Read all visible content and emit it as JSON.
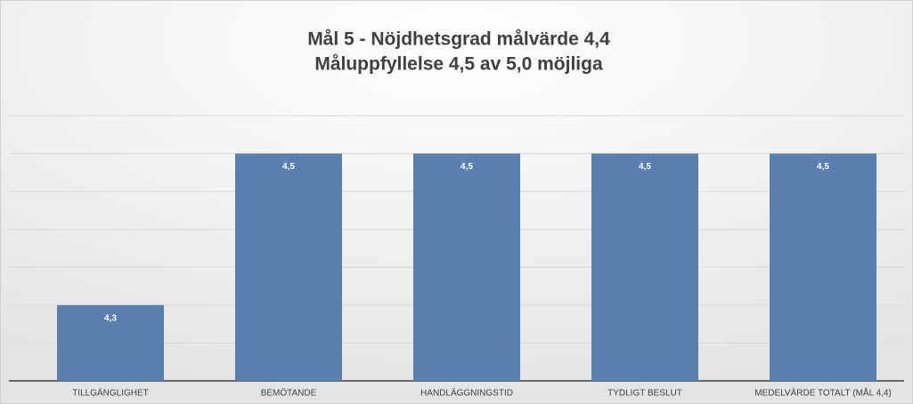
{
  "chart_data": {
    "type": "bar",
    "title": "Mål 5 - Nöjdhetsgrad målvärde 4,4",
    "subtitle": "Måluppfyllelse 4,5 av 5,0 möjliga",
    "categories": [
      "TILLGÄNGLIGHET",
      "BEMÖTANDE",
      "HANDLÄGGNINGSTID",
      "TYDLIGT BESLUT",
      "MEDELVÄRDE TOTALT (MÅL 4,4)"
    ],
    "values": [
      4.3,
      4.5,
      4.5,
      4.5,
      4.5
    ],
    "value_labels": [
      "4,3",
      "4,5",
      "4,5",
      "4,5",
      "4,5"
    ],
    "color": "#5a7fb1",
    "ylim": [
      4.2,
      4.55
    ],
    "yticks": [
      4.2,
      4.25,
      4.3,
      4.35,
      4.4,
      4.45,
      4.5,
      4.55
    ],
    "grid": true
  }
}
